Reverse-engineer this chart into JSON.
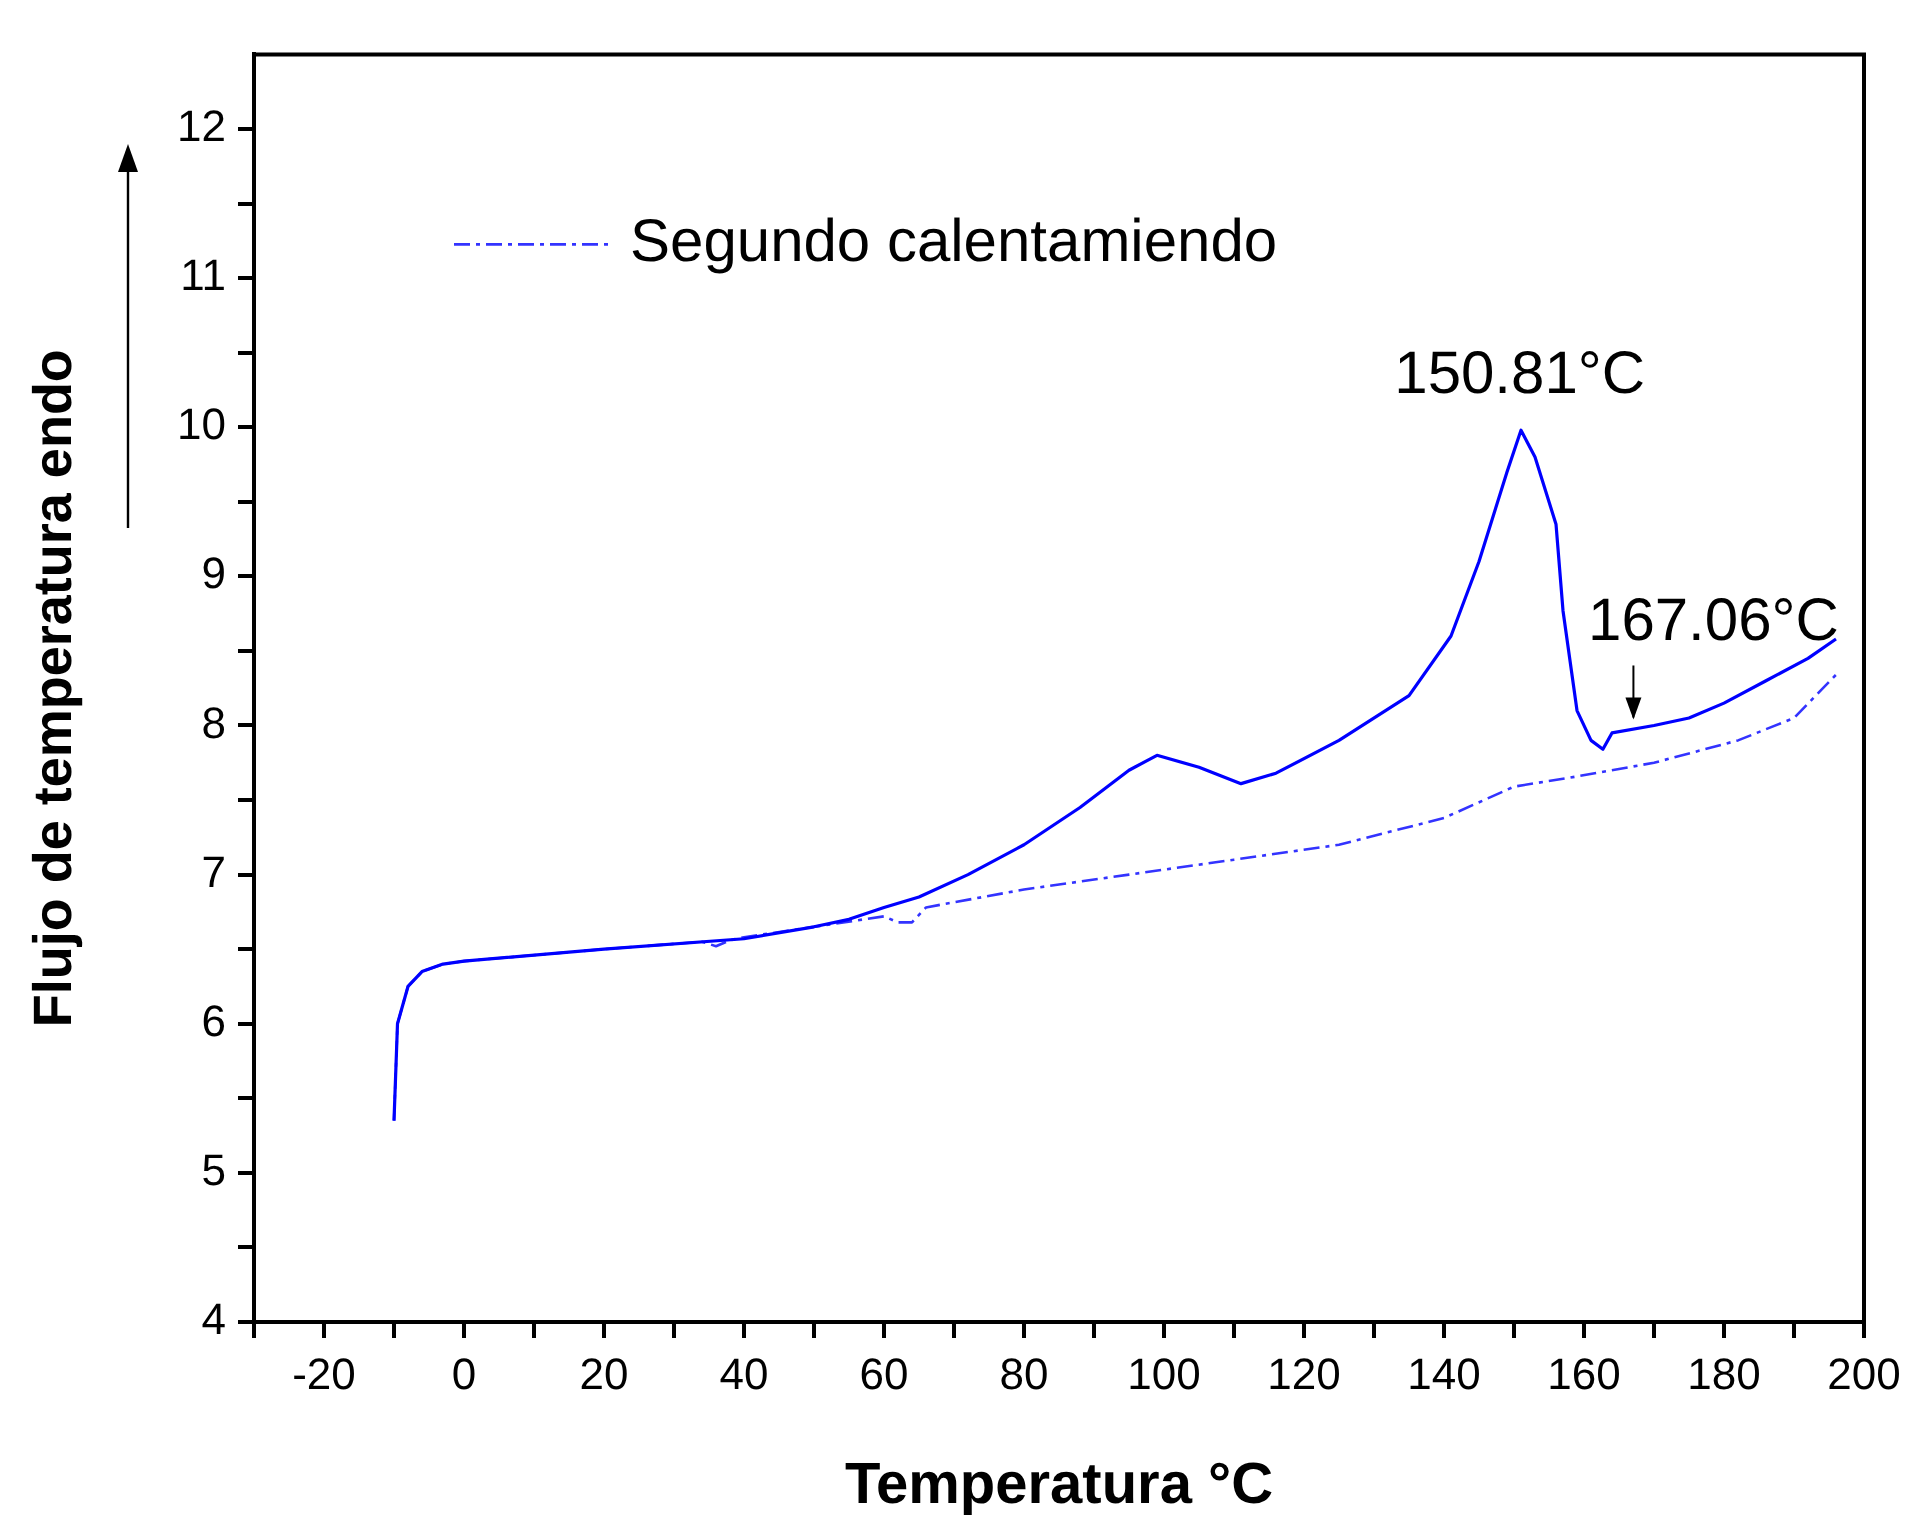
{
  "chart_data": {
    "type": "line",
    "xlabel": "Temperatura °C",
    "ylabel": "Flujo de temperatura endo",
    "xlim": [
      -30,
      200
    ],
    "ylim": [
      4,
      12.5
    ],
    "xticks": [
      {
        "value": -30,
        "label": null
      },
      -20,
      {
        "value": -10,
        "label": null
      },
      0,
      {
        "value": 10,
        "label": null
      },
      20,
      {
        "value": 30,
        "label": null
      },
      40,
      {
        "value": 50,
        "label": null
      },
      60,
      {
        "value": 70,
        "label": null
      },
      80,
      {
        "value": 90,
        "label": null
      },
      100,
      {
        "value": 110,
        "label": null
      },
      120,
      {
        "value": 130,
        "label": null
      },
      140,
      {
        "value": 150,
        "label": null
      },
      160,
      {
        "value": 170,
        "label": null
      },
      180,
      {
        "value": 190,
        "label": null
      },
      200
    ],
    "yticks": [
      4,
      {
        "value": 4.5,
        "label": null
      },
      5,
      {
        "value": 5.5,
        "label": null
      },
      6,
      {
        "value": 6.5,
        "label": null
      },
      7,
      {
        "value": 7.5,
        "label": null
      },
      8,
      {
        "value": 8.5,
        "label": null
      },
      9,
      {
        "value": 9.5,
        "label": null
      },
      10,
      {
        "value": 10.5,
        "label": null
      },
      11,
      {
        "value": 11.5,
        "label": null
      },
      12
    ],
    "grid": false,
    "legend": "top left",
    "marker": "none",
    "series": [
      {
        "color": "#0000ff",
        "line_style": "solid",
        "x": [
          -10,
          -9.5,
          -8,
          -6,
          -3,
          0,
          20,
          40,
          50,
          55,
          60,
          65,
          72,
          80,
          88,
          95,
          99,
          105,
          111,
          116,
          125,
          135,
          141,
          145,
          149,
          151,
          153,
          156,
          157,
          159,
          161,
          162.7,
          164,
          170,
          175,
          180,
          186,
          192,
          196
        ],
        "values": [
          5.35,
          6.0,
          6.25,
          6.35,
          6.4,
          6.42,
          6.5,
          6.57,
          6.65,
          6.7,
          6.78,
          6.85,
          7.0,
          7.2,
          7.45,
          7.7,
          7.8,
          7.72,
          7.61,
          7.68,
          7.9,
          8.2,
          8.6,
          9.1,
          9.7,
          9.98,
          9.8,
          9.35,
          8.77,
          8.1,
          7.9,
          7.84,
          7.95,
          8.0,
          8.05,
          8.15,
          8.3,
          8.45,
          8.58
        ]
      },
      {
        "name": "Segundo calentamiendo",
        "color": "#3333ff",
        "line_style": "dashed",
        "x": [
          -10,
          -9.5,
          -8,
          -6,
          -3,
          0,
          20,
          34,
          36,
          38,
          40,
          50,
          60,
          62,
          64,
          66,
          80,
          95,
          110,
          125,
          140,
          150,
          158,
          170,
          182,
          190,
          196
        ],
        "values": [
          5.35,
          6.0,
          6.25,
          6.35,
          6.4,
          6.42,
          6.5,
          6.55,
          6.52,
          6.56,
          6.58,
          6.65,
          6.72,
          6.68,
          6.68,
          6.78,
          6.9,
          7.0,
          7.1,
          7.2,
          7.38,
          7.59,
          7.65,
          7.75,
          7.9,
          8.05,
          8.34
        ]
      }
    ],
    "annotations": [
      {
        "text": "150.81°C",
        "x": 150.81,
        "y": 9.98
      },
      {
        "text": "167.06°C",
        "x": 167.06,
        "y": 8.0
      }
    ]
  }
}
